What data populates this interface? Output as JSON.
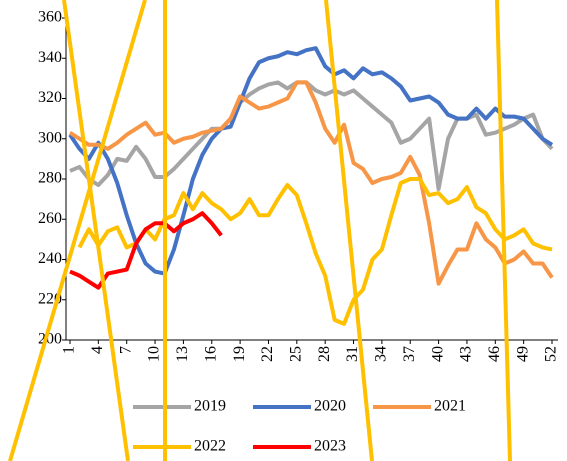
{
  "chart_data": {
    "type": "line",
    "x": [
      1,
      2,
      3,
      4,
      5,
      6,
      7,
      8,
      9,
      10,
      11,
      12,
      13,
      14,
      15,
      16,
      17,
      18,
      19,
      20,
      21,
      22,
      23,
      24,
      25,
      26,
      27,
      28,
      29,
      30,
      31,
      32,
      33,
      34,
      35,
      36,
      37,
      38,
      39,
      40,
      41,
      42,
      43,
      44,
      45,
      46,
      47,
      48,
      49,
      50,
      51,
      52
    ],
    "xlim": [
      1,
      52
    ],
    "xticks": [
      1,
      4,
      7,
      10,
      13,
      16,
      19,
      22,
      25,
      28,
      31,
      34,
      37,
      40,
      43,
      46,
      49,
      52
    ],
    "ylim": [
      200,
      360
    ],
    "yticks": [
      200,
      220,
      240,
      260,
      280,
      300,
      320,
      340,
      360
    ],
    "series": [
      {
        "name": "2019",
        "color": "#a5a5a5",
        "values": [
          284,
          286,
          280,
          277,
          282,
          290,
          289,
          296,
          290,
          281,
          281,
          285,
          290,
          295,
          300,
          305,
          305,
          310,
          318,
          322,
          325,
          327,
          328,
          325,
          328,
          328,
          324,
          322,
          324,
          322,
          324,
          320,
          316,
          312,
          308,
          298,
          300,
          305,
          310,
          275,
          300,
          310,
          310,
          312,
          302,
          303,
          305,
          307,
          310,
          312,
          300,
          295
        ]
      },
      {
        "name": "2020",
        "color": "#4472c4",
        "values": [
          302,
          295,
          290,
          298,
          290,
          278,
          262,
          248,
          238,
          234,
          233,
          245,
          262,
          280,
          292,
          300,
          305,
          306,
          318,
          330,
          338,
          340,
          341,
          343,
          342,
          344,
          345,
          336,
          332,
          334,
          330,
          335,
          332,
          333,
          330,
          326,
          319,
          320,
          321,
          318,
          312,
          310,
          310,
          315,
          310,
          315,
          311,
          311,
          310,
          305,
          300,
          297
        ]
      },
      {
        "name": "2021",
        "color": "#f79646",
        "values": [
          303,
          300,
          297,
          297,
          295,
          298,
          302,
          305,
          308,
          302,
          303,
          298,
          300,
          301,
          303,
          304,
          305,
          310,
          321,
          318,
          315,
          316,
          318,
          320,
          328,
          328,
          318,
          305,
          298,
          307,
          288,
          285,
          278,
          280,
          281,
          283,
          291,
          282,
          258,
          228,
          237,
          245,
          245,
          258,
          250,
          246,
          238,
          240,
          244,
          238,
          238,
          231
        ]
      },
      {
        "name": "2022",
        "color": "#ffc000",
        "values": [
          null,
          246,
          255,
          247,
          254,
          256,
          246,
          248,
          255,
          250,
          260,
          262,
          273,
          265,
          273,
          268,
          265,
          260,
          263,
          270,
          262,
          262,
          270,
          277,
          272,
          258,
          243,
          232,
          210,
          208,
          220,
          225,
          240,
          245,
          262,
          278,
          280,
          280,
          272,
          273,
          268,
          270,
          276,
          266,
          263,
          255,
          250,
          252,
          255,
          248,
          246,
          245
        ]
      },
      {
        "name": "2023",
        "color": "#ff0000",
        "values": [
          234,
          232,
          229,
          226,
          233,
          234,
          235,
          248,
          255,
          258,
          258,
          254,
          258,
          260,
          263,
          258,
          252,
          null,
          null,
          null,
          null,
          null,
          null,
          null,
          null,
          null,
          null,
          null,
          null,
          null,
          null,
          null,
          null,
          null,
          null,
          null,
          null,
          null,
          null,
          null,
          null,
          null,
          null,
          null,
          null,
          null,
          null,
          null,
          null,
          null,
          null,
          null
        ]
      }
    ]
  }
}
